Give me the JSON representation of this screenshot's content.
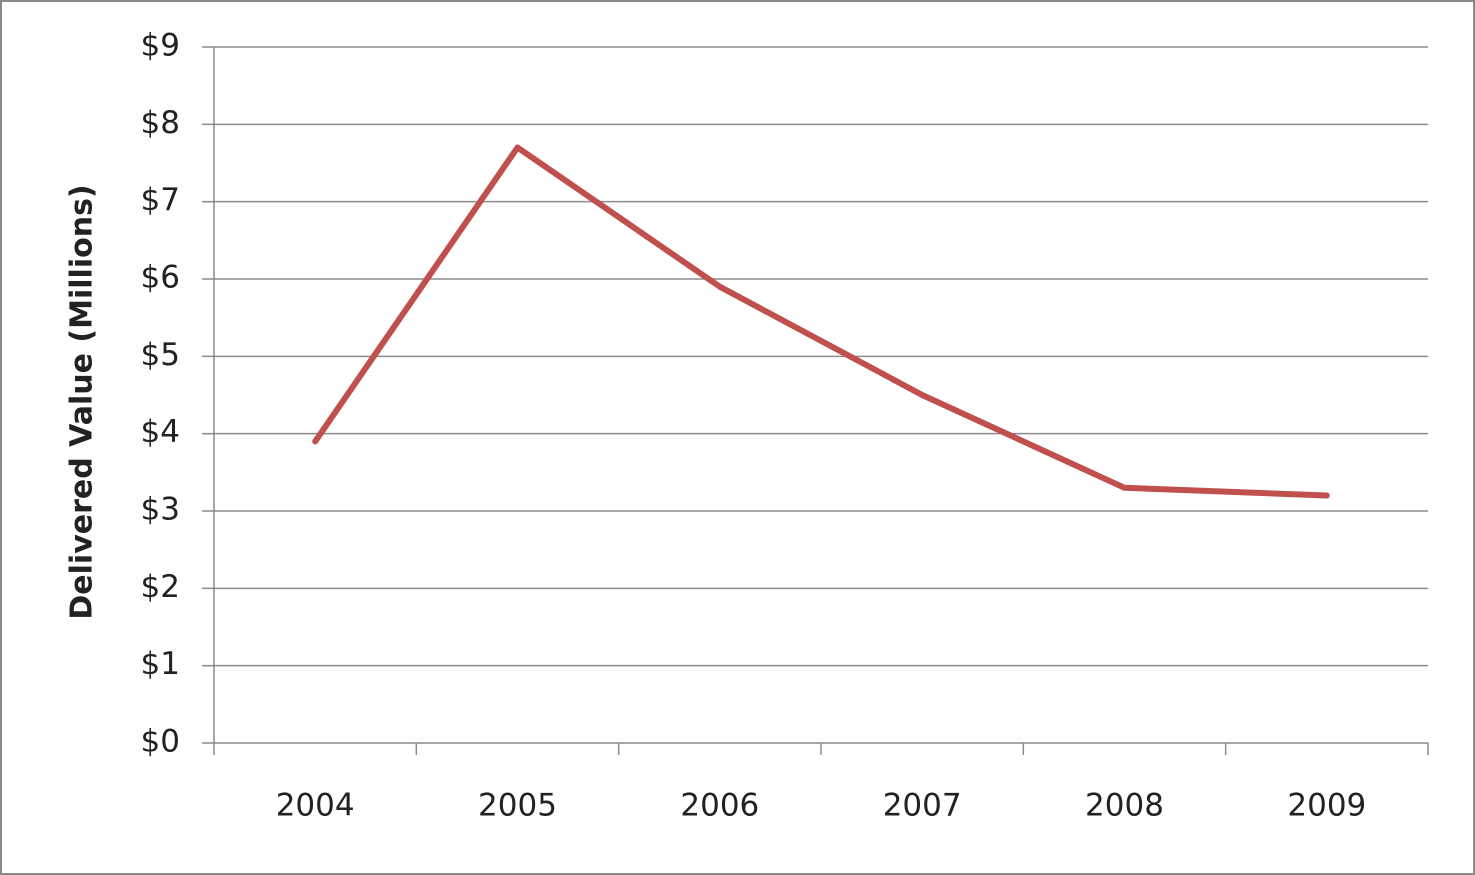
{
  "chart_data": {
    "type": "line",
    "y_label": "Delivered Value (Millions)",
    "categories": [
      "2004",
      "2005",
      "2006",
      "2007",
      "2008",
      "2009"
    ],
    "values": [
      3.9,
      7.7,
      5.9,
      4.5,
      3.3,
      3.2
    ],
    "color": "#c0504d",
    "ylim": [
      0,
      9
    ],
    "yticks": [
      {
        "value": 0,
        "label": "$0"
      },
      {
        "value": 1,
        "label": "$1"
      },
      {
        "value": 2,
        "label": "$2"
      },
      {
        "value": 3,
        "label": "$3"
      },
      {
        "value": 4,
        "label": "$4"
      },
      {
        "value": 5,
        "label": "$5"
      },
      {
        "value": 6,
        "label": "$6"
      },
      {
        "value": 7,
        "label": "$7"
      },
      {
        "value": 8,
        "label": "$8"
      },
      {
        "value": 9,
        "label": "$9"
      }
    ],
    "grid": true
  }
}
